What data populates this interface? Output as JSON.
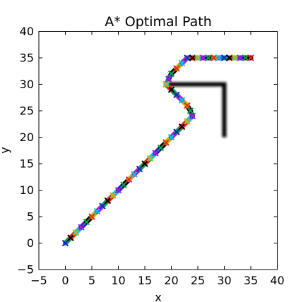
{
  "chart_data": {
    "type": "line",
    "title": "A* Optimal Path",
    "xlabel": "x",
    "ylabel": "y",
    "xlim": [
      -5,
      40
    ],
    "ylim": [
      -5,
      40
    ],
    "xticks": [
      -5,
      0,
      5,
      10,
      15,
      20,
      25,
      30,
      35,
      40
    ],
    "yticks": [
      -5,
      0,
      5,
      10,
      15,
      20,
      25,
      30,
      35,
      40
    ],
    "xtick_labels": [
      "−5",
      "0",
      "5",
      "10",
      "15",
      "20",
      "25",
      "30",
      "35",
      "40"
    ],
    "ytick_labels": [
      "−5",
      "0",
      "5",
      "10",
      "15",
      "20",
      "25",
      "30",
      "35",
      "40"
    ],
    "grid": false,
    "marker": "x",
    "marker_colors": [
      "#00aa44",
      "#ee2222",
      "#00c8e0",
      "#2a1ae0",
      "#000000",
      "#c8b400",
      "#aa22cc"
    ],
    "obstacle": {
      "color": "#000000",
      "x": [
        19,
        30,
        30
      ],
      "y": [
        30,
        30,
        20
      ]
    },
    "series": [
      {
        "x": [
          0,
          1,
          2,
          3,
          4,
          5,
          6,
          7,
          8,
          9,
          10,
          11,
          12,
          13,
          14,
          15,
          16,
          17,
          18,
          19,
          20,
          21,
          22,
          23,
          24,
          23.6,
          23,
          22,
          21,
          20,
          19,
          19.5,
          20,
          21,
          22,
          23,
          24,
          25,
          26,
          27,
          28,
          29,
          30,
          31,
          32,
          33,
          34,
          35
        ],
        "y": [
          0,
          1,
          2,
          3,
          4,
          5,
          6,
          7,
          8,
          9,
          10,
          11,
          12,
          13,
          14,
          15,
          16,
          17,
          18,
          19,
          20,
          21,
          22,
          23,
          24,
          25,
          26,
          27,
          28,
          29,
          30,
          31,
          32,
          33,
          34,
          35,
          35,
          35,
          35,
          35,
          35,
          35,
          35,
          35,
          35,
          35,
          35,
          35
        ]
      }
    ]
  }
}
